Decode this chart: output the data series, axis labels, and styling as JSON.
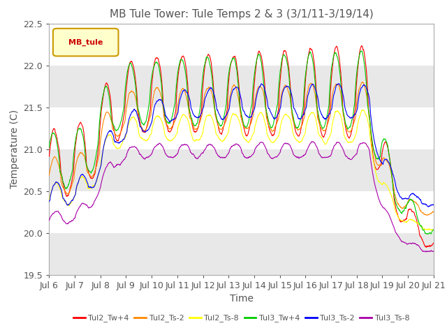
{
  "title": "MB Tule Tower: Tule Temps 2 & 3 (3/1/11-3/19/14)",
  "xlabel": "Time",
  "ylabel": "Temperature (C)",
  "ylim": [
    19.5,
    22.5
  ],
  "yticks": [
    19.5,
    20.0,
    20.5,
    21.0,
    21.5,
    22.0,
    22.5
  ],
  "xtick_labels": [
    "Jul 6",
    "Jul 7",
    "Jul 8",
    "Jul 9",
    "Jul 10",
    "Jul 11",
    "Jul 12",
    "Jul 13",
    "Jul 14",
    "Jul 15",
    "Jul 16",
    "Jul 17",
    "Jul 18",
    "Jul 19",
    "Jul 20",
    "Jul 21"
  ],
  "legend_label": "MB_tule",
  "legend_bg": "#ffffcc",
  "legend_border": "#cc9900",
  "series": [
    {
      "name": "Tul2_Tw+4",
      "color": "#ff0000"
    },
    {
      "name": "Tul2_Ts-2",
      "color": "#ff8800"
    },
    {
      "name": "Tul2_Ts-8",
      "color": "#ffff00"
    },
    {
      "name": "Tul3_Tw+4",
      "color": "#00cc00"
    },
    {
      "name": "Tul3_Ts-2",
      "color": "#0000ff"
    },
    {
      "name": "Tul3_Ts-8",
      "color": "#aa00aa"
    }
  ],
  "band_colors": [
    "#e8e8e8",
    "#ffffff"
  ],
  "title_color": "#555555",
  "axis_color": "#555555",
  "title_fontsize": 11,
  "tick_fontsize": 9,
  "label_fontsize": 10
}
